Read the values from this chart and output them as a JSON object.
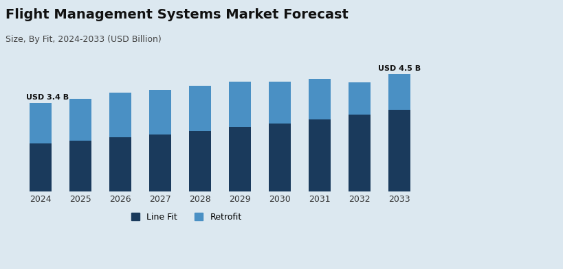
{
  "title": "Flight Management Systems Market Forecast",
  "subtitle": "Size, By Fit, 2024-2033 (USD Billion)",
  "years": [
    2024,
    2025,
    2026,
    2027,
    2028,
    2029,
    2030,
    2031,
    2032,
    2033
  ],
  "line_fit": [
    1.85,
    1.95,
    2.08,
    2.2,
    2.33,
    2.47,
    2.62,
    2.78,
    2.95,
    3.13
  ],
  "retrofit": [
    1.55,
    1.6,
    1.72,
    1.7,
    1.72,
    1.75,
    1.6,
    1.55,
    1.25,
    1.37
  ],
  "line_fit_color": "#1a3a5c",
  "retrofit_color": "#4a90c4",
  "background_color": "#dce8f0",
  "label_start": "USD 3.4 B",
  "label_end": "USD 4.5 B",
  "ylim": [
    0,
    5.2
  ],
  "bar_width": 0.55,
  "legend_line_fit": "Line Fit",
  "legend_retrofit": "Retrofit"
}
